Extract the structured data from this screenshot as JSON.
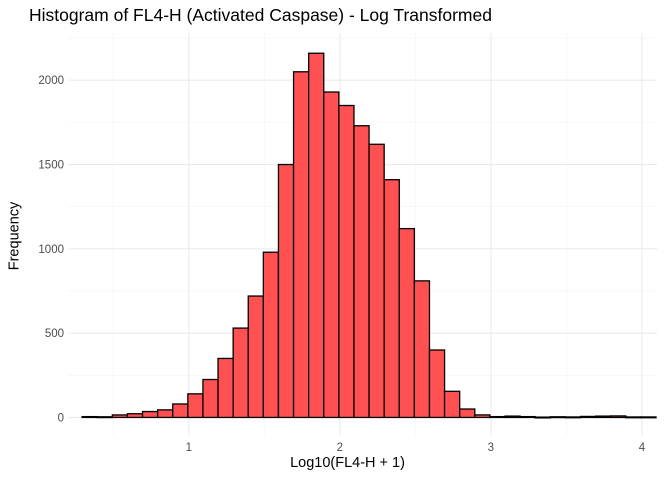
{
  "chart_data": {
    "type": "bar",
    "title": "Histogram of FL4-H (Activated Caspase) - Log Transformed",
    "xlabel": "Log10(FL4-H + 1)",
    "ylabel": "Frequency",
    "xlim": [
      0.2,
      4.1
    ],
    "ylim": [
      -110,
      2280
    ],
    "x_ticks": [
      1,
      2,
      3,
      4
    ],
    "y_ticks": [
      0,
      500,
      1000,
      1500,
      2000
    ],
    "grid": true,
    "bar_color": "#FF5151",
    "bar_outline": "#000000",
    "bins": [
      {
        "x0": 0.2935,
        "x1": 0.3935,
        "count": 5
      },
      {
        "x0": 0.3935,
        "x1": 0.4935,
        "count": 4
      },
      {
        "x0": 0.4935,
        "x1": 0.5935,
        "count": 15
      },
      {
        "x0": 0.5935,
        "x1": 0.6935,
        "count": 22
      },
      {
        "x0": 0.6935,
        "x1": 0.7935,
        "count": 35
      },
      {
        "x0": 0.7935,
        "x1": 0.8935,
        "count": 45
      },
      {
        "x0": 0.8935,
        "x1": 0.9935,
        "count": 80
      },
      {
        "x0": 0.9935,
        "x1": 1.0935,
        "count": 140
      },
      {
        "x0": 1.0935,
        "x1": 1.1935,
        "count": 225
      },
      {
        "x0": 1.1935,
        "x1": 1.2935,
        "count": 350
      },
      {
        "x0": 1.2935,
        "x1": 1.3935,
        "count": 530
      },
      {
        "x0": 1.3935,
        "x1": 1.4935,
        "count": 720
      },
      {
        "x0": 1.4935,
        "x1": 1.5935,
        "count": 980
      },
      {
        "x0": 1.5935,
        "x1": 1.6935,
        "count": 1500
      },
      {
        "x0": 1.6935,
        "x1": 1.7935,
        "count": 2050
      },
      {
        "x0": 1.7935,
        "x1": 1.8935,
        "count": 2160
      },
      {
        "x0": 1.8935,
        "x1": 1.9935,
        "count": 1930
      },
      {
        "x0": 1.9935,
        "x1": 2.0935,
        "count": 1850
      },
      {
        "x0": 2.0935,
        "x1": 2.1935,
        "count": 1730
      },
      {
        "x0": 2.1935,
        "x1": 2.2935,
        "count": 1620
      },
      {
        "x0": 2.2935,
        "x1": 2.3935,
        "count": 1410
      },
      {
        "x0": 2.3935,
        "x1": 2.4935,
        "count": 1120
      },
      {
        "x0": 2.4935,
        "x1": 2.5935,
        "count": 810
      },
      {
        "x0": 2.5935,
        "x1": 2.6935,
        "count": 400
      },
      {
        "x0": 2.6935,
        "x1": 2.7935,
        "count": 155
      },
      {
        "x0": 2.7935,
        "x1": 2.8935,
        "count": 50
      },
      {
        "x0": 2.8935,
        "x1": 2.9935,
        "count": 15
      },
      {
        "x0": 2.9935,
        "x1": 3.0935,
        "count": 5
      },
      {
        "x0": 3.0935,
        "x1": 3.1935,
        "count": 8
      },
      {
        "x0": 3.1935,
        "x1": 3.2935,
        "count": 5
      },
      {
        "x0": 3.2935,
        "x1": 3.3935,
        "count": 2
      },
      {
        "x0": 3.3935,
        "x1": 3.4935,
        "count": 4
      },
      {
        "x0": 3.4935,
        "x1": 3.5935,
        "count": 3
      },
      {
        "x0": 3.5935,
        "x1": 3.6935,
        "count": 6
      },
      {
        "x0": 3.6935,
        "x1": 3.7935,
        "count": 8
      },
      {
        "x0": 3.7935,
        "x1": 3.8935,
        "count": 9
      },
      {
        "x0": 3.8935,
        "x1": 3.9935,
        "count": 3
      },
      {
        "x0": 3.9935,
        "x1": 4.0935,
        "count": 3
      }
    ]
  }
}
